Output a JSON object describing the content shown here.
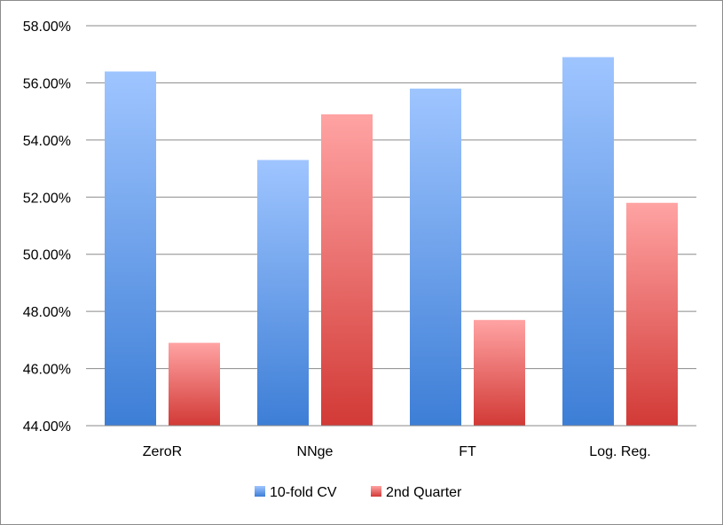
{
  "chart_data": {
    "type": "bar",
    "title": "",
    "xlabel": "",
    "ylabel": "",
    "categories": [
      "ZeroR",
      "NNge",
      "FT",
      "Log. Reg."
    ],
    "series": [
      {
        "name": "10-fold CV",
        "values": [
          56.4,
          53.3,
          55.8,
          56.9
        ]
      },
      {
        "name": "2nd Quarter",
        "values": [
          46.9,
          54.9,
          47.7,
          51.8
        ]
      }
    ],
    "ylim": [
      44,
      58
    ],
    "yticks": [
      44,
      46,
      48,
      50,
      52,
      54,
      56,
      58
    ],
    "ytick_format": "percent-2dp",
    "grid": true,
    "legend_position": "bottom",
    "colors": {
      "series0_top": "#9fc5ff",
      "series0_bottom": "#3d7ed6",
      "series1_top": "#ffa3a3",
      "series1_bottom": "#d23a36",
      "grid": "#8a8a8a"
    }
  }
}
